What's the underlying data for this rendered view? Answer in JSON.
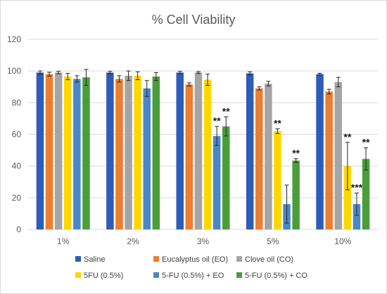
{
  "chart_data": {
    "type": "bar",
    "title": "% Cell Viability",
    "xlabel": "",
    "ylabel": "",
    "ylim": [
      0,
      120
    ],
    "yticks": [
      0,
      20,
      40,
      60,
      80,
      100,
      120
    ],
    "grid": true,
    "legend_position": "bottom",
    "categories": [
      "1%",
      "2%",
      "3%",
      "5%",
      "10%"
    ],
    "series": [
      {
        "name": "Saline",
        "color": "#2e5cb8",
        "values": [
          99,
          99,
          99,
          98.5,
          98
        ],
        "errors": [
          1,
          0.8,
          0.8,
          1,
          0.6
        ]
      },
      {
        "name": "Eucalyptus oil (EO)",
        "color": "#ed7d31",
        "values": [
          98,
          95,
          91.5,
          89,
          87
        ],
        "errors": [
          1.2,
          2,
          1,
          1,
          1.5
        ]
      },
      {
        "name": "Clove oil (CO)",
        "color": "#a5a5a5",
        "values": [
          99,
          97,
          99,
          92,
          93
        ],
        "errors": [
          0.8,
          3,
          0.6,
          1.5,
          3
        ]
      },
      {
        "name": "5FU (0.5%)",
        "color": "#ffd700",
        "values": [
          96.5,
          97,
          94.5,
          62,
          40
        ],
        "errors": [
          2,
          2.5,
          3.5,
          1.5,
          15
        ]
      },
      {
        "name": "5-FU (0.5%) + EO",
        "color": "#4a86c8",
        "values": [
          95,
          89,
          59,
          16,
          16
        ],
        "errors": [
          2,
          5,
          6,
          12,
          7
        ]
      },
      {
        "name": "5-FU (0.5%) + CO",
        "color": "#4a9e3a",
        "values": [
          96,
          96.5,
          65,
          43.5,
          44.5
        ],
        "errors": [
          5,
          2.5,
          6,
          1.2,
          7
        ]
      }
    ],
    "annotations": [
      {
        "category": "3%",
        "series": "5-FU (0.5%) + EO",
        "text": "**"
      },
      {
        "category": "3%",
        "series": "5-FU (0.5%) + CO",
        "text": "**"
      },
      {
        "category": "5%",
        "series": "5FU (0.5%)",
        "text": "**"
      },
      {
        "category": "5%",
        "series": "5-FU (0.5%) + CO",
        "text": "**"
      },
      {
        "category": "10%",
        "series": "5FU (0.5%)",
        "text": "**"
      },
      {
        "category": "10%",
        "series": "5-FU (0.5%) + EO",
        "text": "***"
      },
      {
        "category": "10%",
        "series": "5-FU (0.5%) + CO",
        "text": "**"
      }
    ]
  }
}
